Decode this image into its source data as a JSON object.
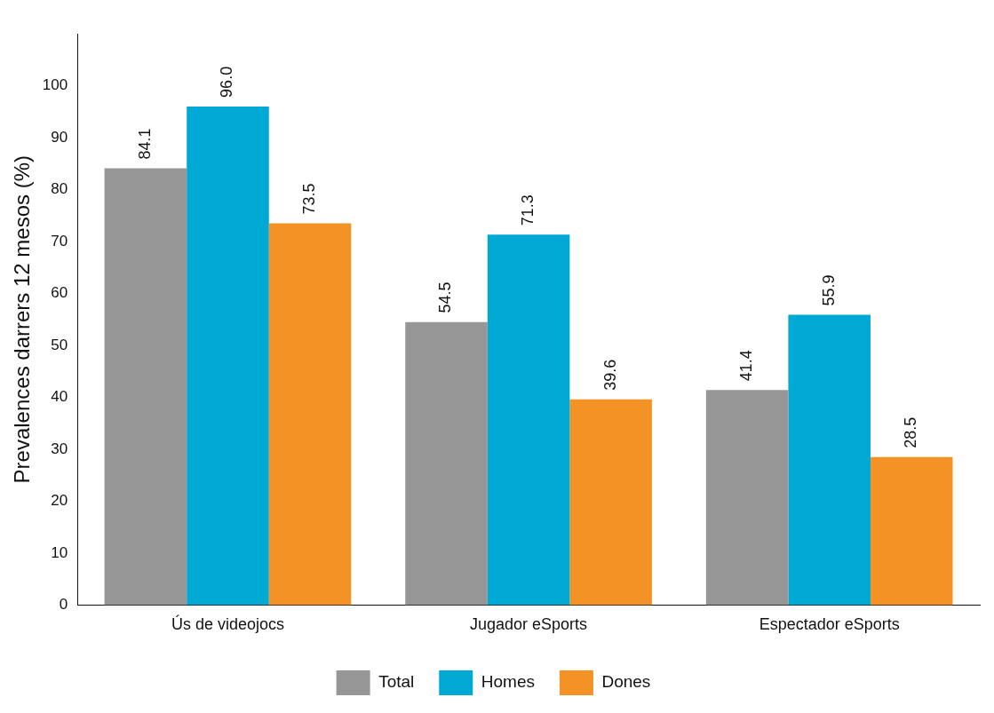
{
  "chart_data": {
    "type": "bar",
    "ylabel": "Prevalences darrers 12 mesos (%)",
    "categories": [
      "Ús de videojocs",
      "Jugador eSports",
      "Espectador eSports"
    ],
    "series": [
      {
        "name": "Total",
        "color": "#969696",
        "values": [
          84.1,
          54.5,
          41.4
        ],
        "value_labels": [
          "84.1",
          "54.5",
          "41.4"
        ]
      },
      {
        "name": "Homes",
        "color": "#00a9d4",
        "values": [
          96.0,
          71.3,
          55.9
        ],
        "value_labels": [
          "96.0",
          "71.3",
          "55.9"
        ]
      },
      {
        "name": "Dones",
        "color": "#f39325",
        "values": [
          73.5,
          39.6,
          28.5
        ],
        "value_labels": [
          "73.5",
          "39.6",
          "28.5"
        ]
      }
    ],
    "ylim": [
      0,
      110
    ],
    "yticks": [
      0,
      10,
      20,
      30,
      40,
      50,
      60,
      70,
      80,
      90,
      100
    ],
    "legend": "bottom",
    "grid": false
  }
}
